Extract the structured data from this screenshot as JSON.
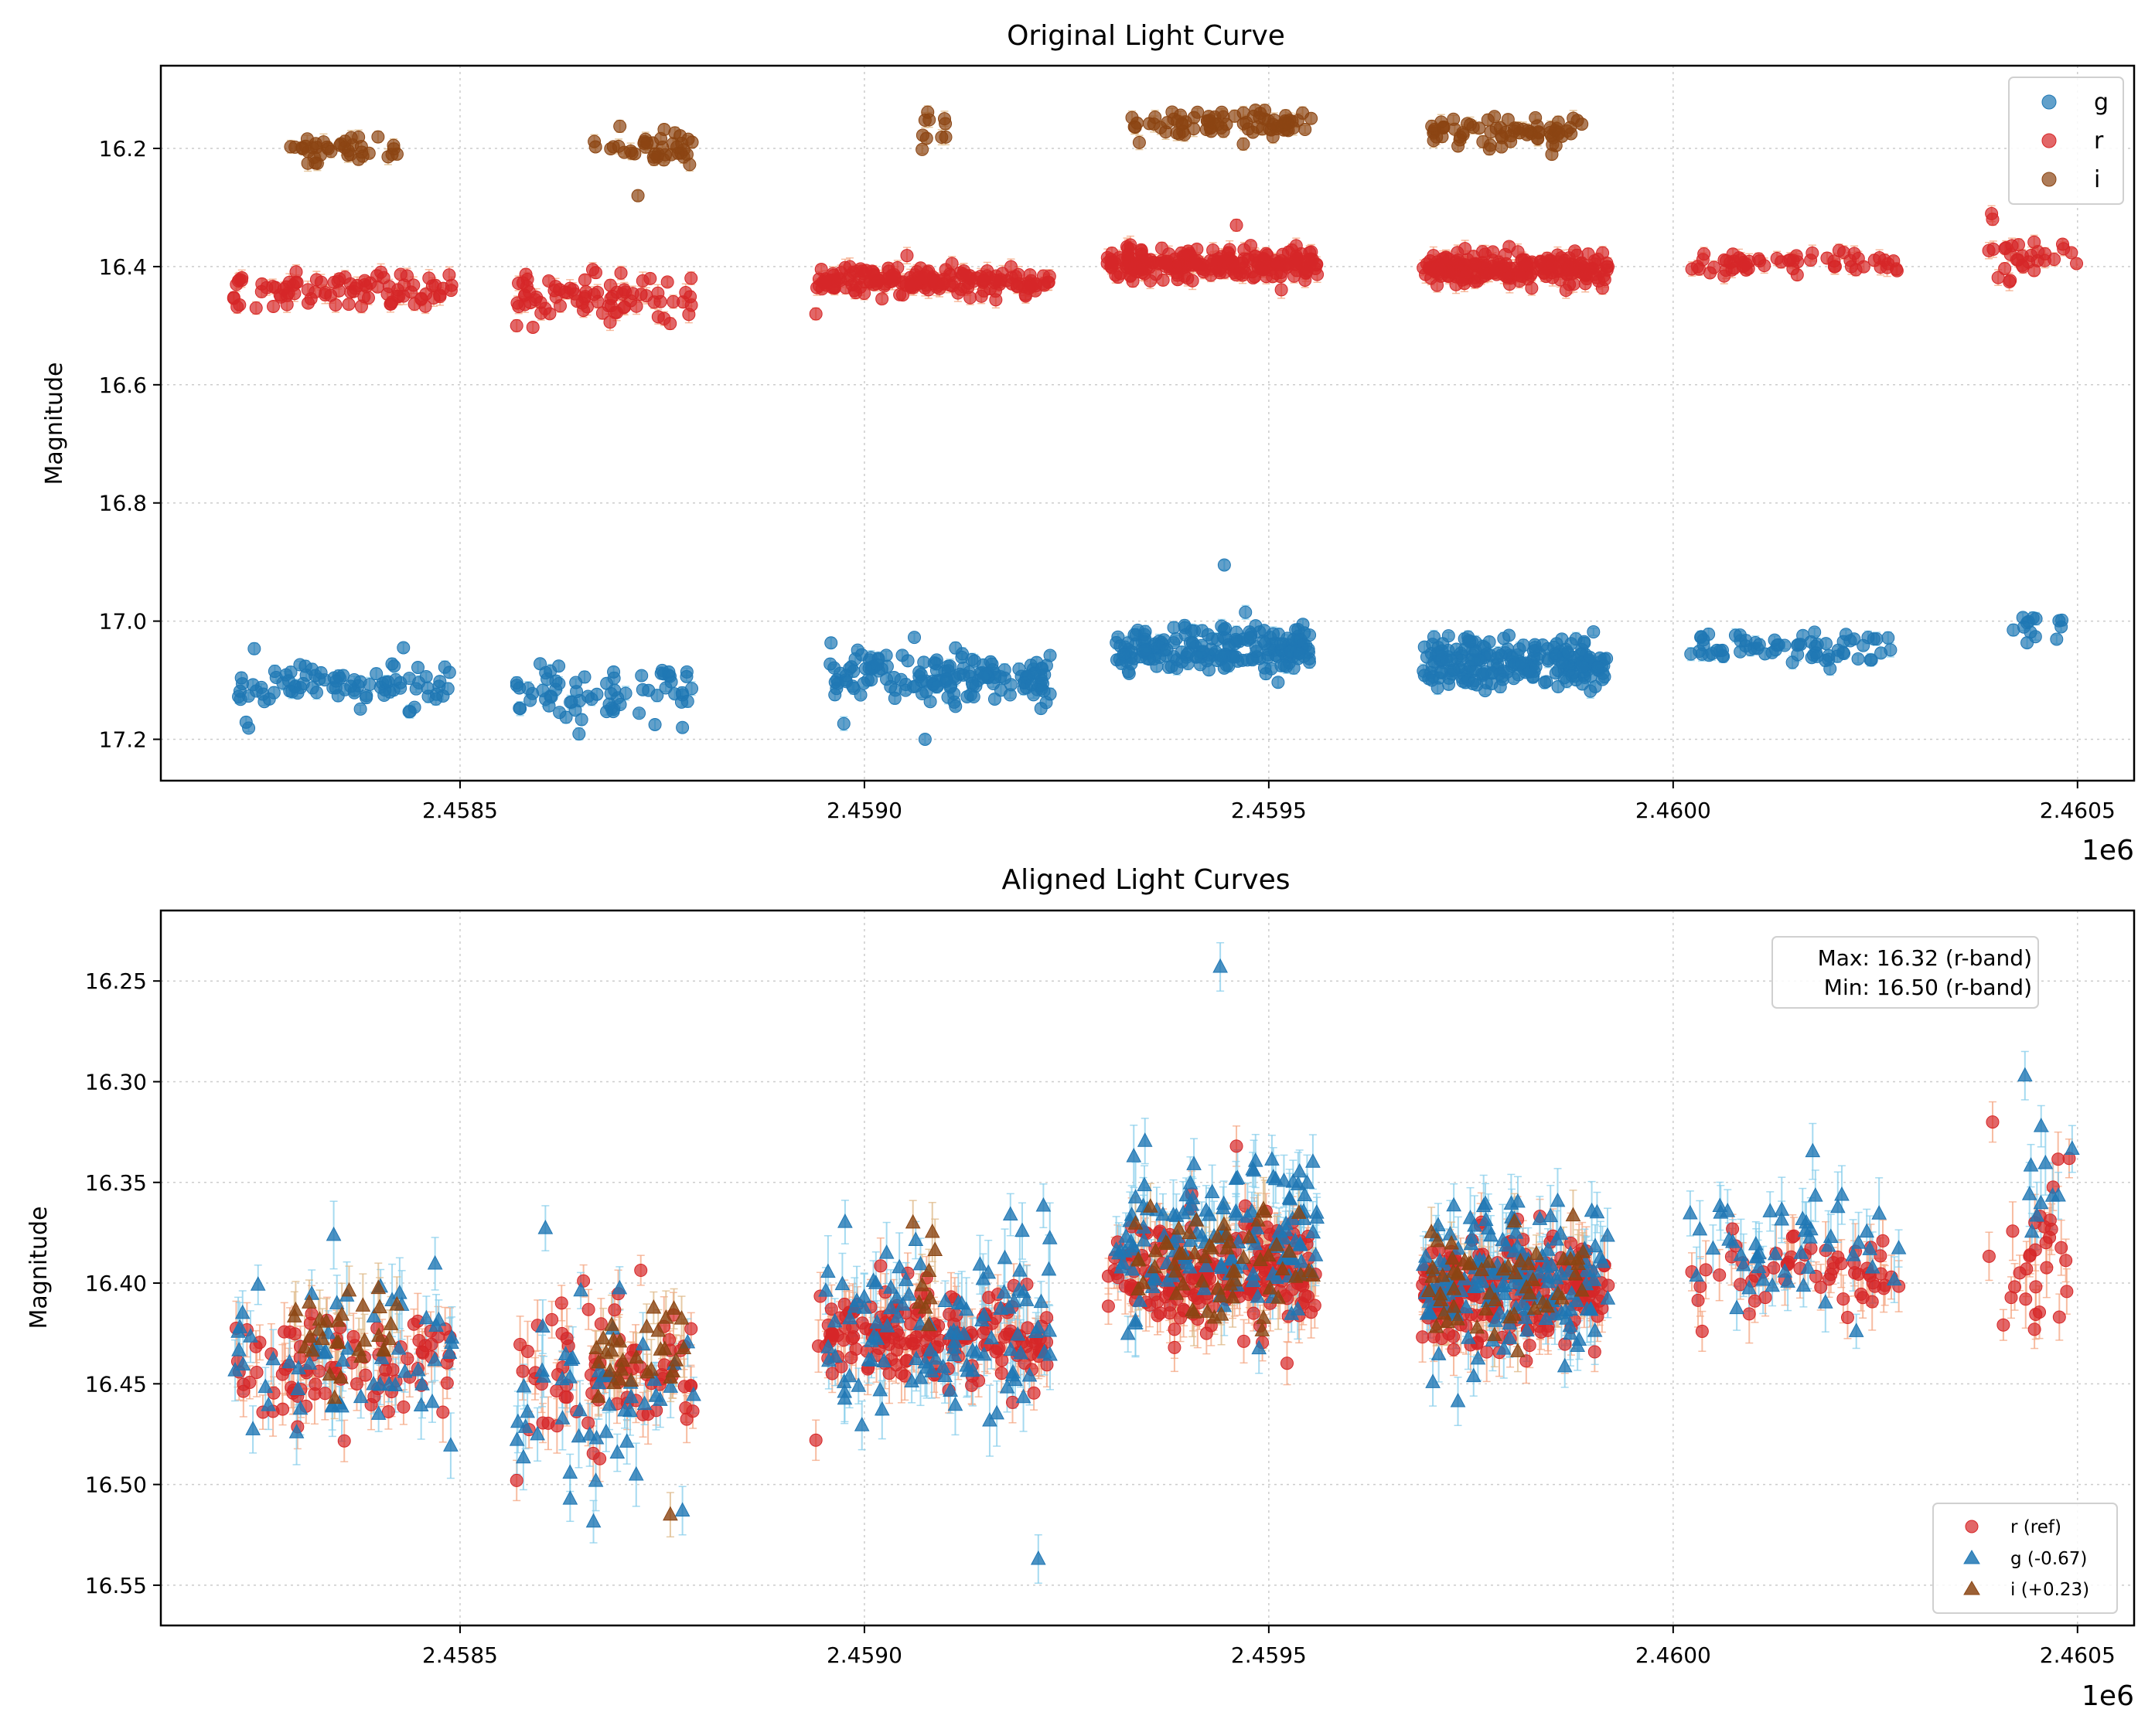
{
  "figure": {
    "background": "#ffffff"
  },
  "colors": {
    "g": "#1f77b4",
    "g_err": "#87ceeb",
    "r": "#d62728",
    "r_err": "#f4a582",
    "i": "#8b4513",
    "i_err": "#deb887",
    "grid": "#cccccc"
  },
  "chart_data": [
    {
      "type": "scatter",
      "title": "Original Light Curve",
      "xlabel": "",
      "ylabel": "Magnitude",
      "x_offset_label": "1e6",
      "xlim": [
        2458130,
        2460570
      ],
      "ylim": [
        17.27,
        16.06
      ],
      "y_inverted": true,
      "grid": true,
      "x_ticks": [
        2458500,
        2459000,
        2459500,
        2460000,
        2460500
      ],
      "x_tick_labels": [
        "2.4585",
        "2.4590",
        "2.4595",
        "2.4600",
        "2.4605"
      ],
      "y_ticks": [
        16.2,
        16.4,
        16.6,
        16.8,
        17.0,
        17.2
      ],
      "y_tick_labels": [
        "16.2",
        "16.4",
        "16.6",
        "16.8",
        "17.0",
        "17.2"
      ],
      "legend": {
        "position": "upper right",
        "entries": [
          {
            "label": "g",
            "color": "#1f77b4",
            "marker": "circle"
          },
          {
            "label": "r",
            "color": "#d62728",
            "marker": "circle"
          },
          {
            "label": "i",
            "color": "#8b4513",
            "marker": "circle"
          }
        ]
      },
      "series": [
        {
          "name": "g",
          "marker": "circle",
          "color": "#1f77b4",
          "err": 0.008,
          "clusters": [
            {
              "x": [
                2458220,
                2458490
              ],
              "y": 17.11,
              "spread": 0.02,
              "n": 90,
              "seed": 11
            },
            {
              "x": [
                2458570,
                2458790
              ],
              "y": 17.12,
              "spread": 0.025,
              "n": 70,
              "seed": 12
            },
            {
              "x": [
                2458950,
                2459230
              ],
              "y": 17.09,
              "spread": 0.025,
              "n": 160,
              "seed": 13
            },
            {
              "x": [
                2459310,
                2459560
              ],
              "y": 17.05,
              "spread": 0.02,
              "n": 200,
              "seed": 14
            },
            {
              "x": [
                2459690,
                2459920
              ],
              "y": 17.07,
              "spread": 0.02,
              "n": 220,
              "seed": 15
            },
            {
              "x": [
                2460020,
                2460280
              ],
              "y": 17.05,
              "spread": 0.015,
              "n": 70,
              "seed": 16
            },
            {
              "x": [
                2460420,
                2460500
              ],
              "y": 17.01,
              "spread": 0.015,
              "n": 14,
              "seed": 17
            }
          ],
          "outliers": [
            [
              2459075,
              17.2
            ],
            [
              2459445,
              16.905
            ],
            [
              2458430,
              17.045
            ],
            [
              2458775,
              17.18
            ]
          ]
        },
        {
          "name": "r",
          "marker": "circle",
          "color": "#d62728",
          "err": 0.01,
          "clusters": [
            {
              "x": [
                2458220,
                2458490
              ],
              "y": 16.44,
              "spread": 0.015,
              "n": 90,
              "seed": 21
            },
            {
              "x": [
                2458570,
                2458790
              ],
              "y": 16.445,
              "spread": 0.018,
              "n": 80,
              "seed": 22
            },
            {
              "x": [
                2458940,
                2459230
              ],
              "y": 16.425,
              "spread": 0.012,
              "n": 180,
              "seed": 23
            },
            {
              "x": [
                2459300,
                2459560
              ],
              "y": 16.395,
              "spread": 0.013,
              "n": 220,
              "seed": 24
            },
            {
              "x": [
                2459690,
                2459920
              ],
              "y": 16.405,
              "spread": 0.013,
              "n": 220,
              "seed": 25
            },
            {
              "x": [
                2460020,
                2460280
              ],
              "y": 16.395,
              "spread": 0.01,
              "n": 60,
              "seed": 26
            },
            {
              "x": [
                2460390,
                2460500
              ],
              "y": 16.385,
              "spread": 0.02,
              "n": 30,
              "seed": 27
            }
          ],
          "outliers": [
            [
              2458570,
              16.5
            ],
            [
              2458940,
              16.48
            ],
            [
              2459460,
              16.33
            ],
            [
              2460395,
              16.32
            ]
          ]
        },
        {
          "name": "i",
          "marker": "circle",
          "color": "#8b4513",
          "err": 0.009,
          "clusters": [
            {
              "x": [
                2458290,
                2458425
              ],
              "y": 16.2,
              "spread": 0.012,
              "n": 40,
              "seed": 31
            },
            {
              "x": [
                2458665,
                2458790
              ],
              "y": 16.2,
              "spread": 0.015,
              "n": 40,
              "seed": 32
            },
            {
              "x": [
                2459065,
                2459105
              ],
              "y": 16.18,
              "spread": 0.02,
              "n": 10,
              "seed": 33
            },
            {
              "x": [
                2459330,
                2459555
              ],
              "y": 16.16,
              "spread": 0.012,
              "n": 80,
              "seed": 34
            },
            {
              "x": [
                2459690,
                2459890
              ],
              "y": 16.17,
              "spread": 0.013,
              "n": 70,
              "seed": 35
            }
          ],
          "outliers": [
            [
              2458720,
              16.28
            ],
            [
              2459850,
              16.21
            ]
          ]
        }
      ]
    },
    {
      "type": "scatter",
      "title": "Aligned Light Curves",
      "xlabel": "",
      "ylabel": "Magnitude",
      "x_offset_label": "1e6",
      "xlim": [
        2458130,
        2460570
      ],
      "ylim": [
        16.57,
        16.215
      ],
      "y_inverted": true,
      "grid": true,
      "x_ticks": [
        2458500,
        2459000,
        2459500,
        2460000,
        2460500
      ],
      "x_tick_labels": [
        "2.4585",
        "2.4590",
        "2.4595",
        "2.4600",
        "2.4605"
      ],
      "y_ticks": [
        16.25,
        16.3,
        16.35,
        16.4,
        16.45,
        16.5,
        16.55
      ],
      "y_tick_labels": [
        "16.25",
        "16.30",
        "16.35",
        "16.40",
        "16.45",
        "16.50",
        "16.55"
      ],
      "annotation": {
        "line1": "Max: 16.32 (r-band)",
        "line2": "Min: 16.50 (r-band)",
        "position": "upper right"
      },
      "legend": {
        "position": "lower right",
        "entries": [
          {
            "label": "r (ref)",
            "color": "#d62728",
            "marker": "circle"
          },
          {
            "label": "g (-0.67)",
            "color": "#1f77b4",
            "marker": "triangle"
          },
          {
            "label": "i (+0.23)",
            "color": "#8b4513",
            "marker": "triangle"
          }
        ]
      },
      "series": [
        {
          "name": "r (ref)",
          "marker": "circle",
          "color": "#d62728",
          "err": 0.01,
          "clusters": [
            {
              "x": [
                2458220,
                2458490
              ],
              "y": 16.44,
              "spread": 0.015,
              "n": 90,
              "seed": 41
            },
            {
              "x": [
                2458570,
                2458790
              ],
              "y": 16.445,
              "spread": 0.018,
              "n": 80,
              "seed": 42
            },
            {
              "x": [
                2458940,
                2459230
              ],
              "y": 16.425,
              "spread": 0.012,
              "n": 180,
              "seed": 43
            },
            {
              "x": [
                2459300,
                2459560
              ],
              "y": 16.395,
              "spread": 0.013,
              "n": 220,
              "seed": 44
            },
            {
              "x": [
                2459690,
                2459920
              ],
              "y": 16.405,
              "spread": 0.013,
              "n": 220,
              "seed": 45
            },
            {
              "x": [
                2460020,
                2460280
              ],
              "y": 16.395,
              "spread": 0.01,
              "n": 60,
              "seed": 46
            },
            {
              "x": [
                2460390,
                2460500
              ],
              "y": 16.385,
              "spread": 0.02,
              "n": 30,
              "seed": 47
            }
          ],
          "outliers": [
            [
              2458570,
              16.498
            ],
            [
              2458940,
              16.478
            ],
            [
              2459460,
              16.332
            ],
            [
              2460395,
              16.32
            ]
          ]
        },
        {
          "name": "g (-0.67)",
          "marker": "triangle",
          "color": "#1f77b4",
          "err": 0.012,
          "clusters": [
            {
              "x": [
                2458220,
                2458490
              ],
              "y": 16.44,
              "spread": 0.02,
              "n": 60,
              "seed": 51
            },
            {
              "x": [
                2458570,
                2458790
              ],
              "y": 16.45,
              "spread": 0.025,
              "n": 50,
              "seed": 52
            },
            {
              "x": [
                2458950,
                2459230
              ],
              "y": 16.42,
              "spread": 0.025,
              "n": 110,
              "seed": 53
            },
            {
              "x": [
                2459310,
                2459560
              ],
              "y": 16.38,
              "spread": 0.02,
              "n": 140,
              "seed": 54
            },
            {
              "x": [
                2459690,
                2459920
              ],
              "y": 16.4,
              "spread": 0.02,
              "n": 150,
              "seed": 55
            },
            {
              "x": [
                2460020,
                2460280
              ],
              "y": 16.38,
              "spread": 0.015,
              "n": 50,
              "seed": 56
            },
            {
              "x": [
                2460420,
                2460500
              ],
              "y": 16.345,
              "spread": 0.015,
              "n": 10,
              "seed": 57
            }
          ],
          "outliers": [
            [
              2459440,
              16.243
            ],
            [
              2459215,
              16.537
            ],
            [
              2460435,
              16.297
            ],
            [
              2458775,
              16.513
            ]
          ]
        },
        {
          "name": "i (+0.23)",
          "marker": "triangle",
          "color": "#8b4513",
          "err": 0.011,
          "clusters": [
            {
              "x": [
                2458290,
                2458425
              ],
              "y": 16.43,
              "spread": 0.012,
              "n": 30,
              "seed": 61
            },
            {
              "x": [
                2458665,
                2458790
              ],
              "y": 16.43,
              "spread": 0.015,
              "n": 30,
              "seed": 62
            },
            {
              "x": [
                2459065,
                2459105
              ],
              "y": 16.41,
              "spread": 0.02,
              "n": 8,
              "seed": 63
            },
            {
              "x": [
                2459330,
                2459555
              ],
              "y": 16.39,
              "spread": 0.012,
              "n": 60,
              "seed": 64
            },
            {
              "x": [
                2459690,
                2459890
              ],
              "y": 16.4,
              "spread": 0.013,
              "n": 55,
              "seed": 65
            }
          ],
          "outliers": [
            [
              2458760,
              16.515
            ],
            [
              2459060,
              16.37
            ]
          ]
        }
      ]
    }
  ]
}
